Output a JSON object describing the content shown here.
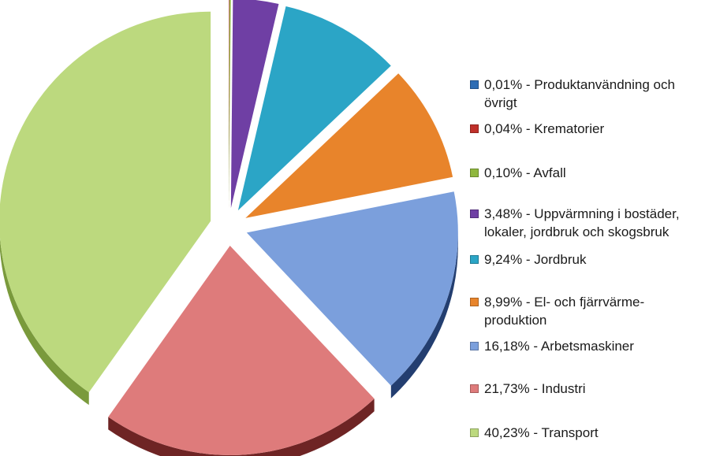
{
  "chart_data": {
    "type": "pie",
    "style": "3d-exploded",
    "legend_position": "right",
    "slices": [
      {
        "label": "0,01% - Produktanvändning och övrigt",
        "value": 0.01,
        "color": "#2e6db4",
        "side": "#1d4a7d"
      },
      {
        "label": "0,04% - Krematorier",
        "value": 0.04,
        "color": "#c0302a",
        "side": "#7d1e1a"
      },
      {
        "label": "0,10% - Avfall",
        "value": 0.1,
        "color": "#8fb73e",
        "side": "#5d7a26"
      },
      {
        "label": "3,48% - Uppvärmning i bostäder, lokaler, jordbruk och skogsbruk",
        "value": 3.48,
        "color": "#6f3fa4",
        "side": "#472770"
      },
      {
        "label": "9,24% - Jordbruk",
        "value": 9.24,
        "color": "#2ba5c6",
        "side": "#1b6e86"
      },
      {
        "label": "8,99% - El- och fjärrvärme-produktion",
        "value": 8.99,
        "color": "#e8842b",
        "side": "#a65a17"
      },
      {
        "label": "16,18% - Arbetsmaskiner",
        "value": 16.18,
        "color": "#7b9fdc",
        "side": "#233e70"
      },
      {
        "label": "21,73% - Industri",
        "value": 21.73,
        "color": "#de7b7b",
        "side": "#6e2424"
      },
      {
        "label": "40,23% - Transport",
        "value": 40.23,
        "color": "#bcd97e",
        "side": "#7a9a3c"
      }
    ]
  }
}
